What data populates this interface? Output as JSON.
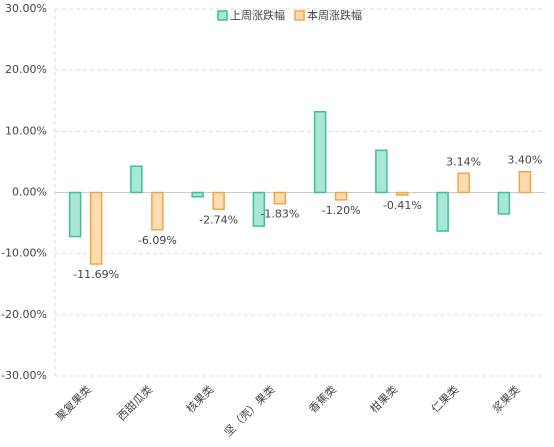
{
  "chart_data": {
    "type": "bar",
    "categories": [
      "聚复果类",
      "西甜瓜类",
      "核果类",
      "坚（壳）果类",
      "香蕉类",
      "柑果类",
      "仁果类",
      "浆果类"
    ],
    "series": [
      {
        "name": "上周涨跌幅",
        "color": "#3fbf9f",
        "fill": "#a8e6d6",
        "values": [
          -7.2,
          4.3,
          -0.7,
          -5.5,
          13.2,
          6.9,
          -6.3,
          -3.5
        ]
      },
      {
        "name": "本周涨跌幅",
        "color": "#f2a444",
        "fill": "#fddcb3",
        "values": [
          -11.69,
          -6.09,
          -2.74,
          -1.83,
          -1.2,
          -0.41,
          3.14,
          3.4
        ],
        "value_labels": [
          "-11.69%",
          "-6.09%",
          "-2.74%",
          "-1.83%",
          "-1.20%",
          "-0.41%",
          "3.14%",
          "3.40%"
        ]
      }
    ],
    "ylim": [
      -30,
      30
    ],
    "yticks": [
      {
        "value": -30,
        "label": "-30.00%"
      },
      {
        "value": -20,
        "label": "-20.00%"
      },
      {
        "value": -10,
        "label": "-10.00%"
      },
      {
        "value": 0,
        "label": "0.00%"
      },
      {
        "value": 10,
        "label": "10.00%"
      },
      {
        "value": 20,
        "label": "20.00%"
      },
      {
        "value": 30,
        "label": "30.00%"
      }
    ],
    "grid": true,
    "legend": "top"
  }
}
